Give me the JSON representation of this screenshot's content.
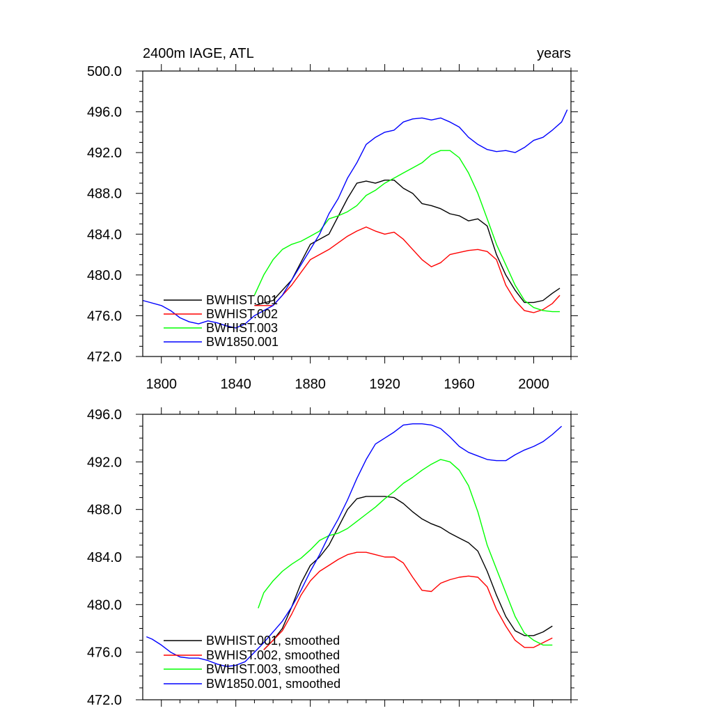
{
  "chart_data": [
    {
      "type": "line",
      "title_left": "2400m IAGE, ATL",
      "title_right": "years",
      "xlim": [
        1790,
        2020
      ],
      "ylim": [
        472,
        500
      ],
      "x_ticks": [
        "1800",
        "1840",
        "1880",
        "1920",
        "1960",
        "2000"
      ],
      "y_ticks": [
        "472.0",
        "476.0",
        "480.0",
        "484.0",
        "488.0",
        "492.0",
        "496.0",
        "500.0"
      ],
      "series": [
        {
          "name": "BWHIST.001",
          "color": "#000000",
          "x": [
            1850,
            1860,
            1870,
            1880,
            1890,
            1900,
            1905,
            1910,
            1915,
            1920,
            1925,
            1930,
            1935,
            1940,
            1945,
            1950,
            1955,
            1960,
            1965,
            1970,
            1975,
            1980,
            1985,
            1990,
            1995,
            2000,
            2005,
            2010,
            2014
          ],
          "y": [
            477.0,
            477.5,
            479.5,
            483.0,
            484.0,
            487.5,
            489.0,
            489.2,
            489.0,
            489.3,
            489.3,
            488.5,
            488.0,
            487.0,
            486.8,
            486.5,
            486.0,
            485.8,
            485.3,
            485.5,
            484.8,
            482.0,
            480.0,
            478.5,
            477.3,
            477.3,
            477.5,
            478.2,
            478.7
          ]
        },
        {
          "name": "BWHIST.002",
          "color": "#ff0000",
          "x": [
            1850,
            1860,
            1870,
            1880,
            1890,
            1900,
            1905,
            1910,
            1915,
            1920,
            1925,
            1930,
            1935,
            1940,
            1945,
            1950,
            1955,
            1960,
            1965,
            1970,
            1975,
            1980,
            1985,
            1990,
            1995,
            2000,
            2005,
            2010,
            2014
          ],
          "y": [
            477.0,
            477.0,
            479.0,
            481.5,
            482.5,
            483.8,
            484.3,
            484.7,
            484.3,
            484.0,
            484.2,
            483.5,
            482.5,
            481.5,
            480.8,
            481.2,
            482.0,
            482.2,
            482.4,
            482.5,
            482.3,
            481.5,
            479.0,
            477.5,
            476.5,
            476.3,
            476.6,
            477.2,
            478.0
          ]
        },
        {
          "name": "BWHIST.003",
          "color": "#00ff00",
          "x": [
            1850,
            1855,
            1860,
            1865,
            1870,
            1875,
            1880,
            1885,
            1890,
            1895,
            1900,
            1905,
            1910,
            1915,
            1920,
            1925,
            1930,
            1935,
            1940,
            1945,
            1950,
            1955,
            1960,
            1965,
            1970,
            1975,
            1980,
            1985,
            1990,
            1995,
            2000,
            2005,
            2010,
            2014
          ],
          "y": [
            478.0,
            480.0,
            481.5,
            482.5,
            483.0,
            483.3,
            483.8,
            484.3,
            485.5,
            485.8,
            486.2,
            486.8,
            487.8,
            488.3,
            489.0,
            489.5,
            490.0,
            490.5,
            491.0,
            491.8,
            492.2,
            492.2,
            491.5,
            490.0,
            488.0,
            485.5,
            483.0,
            481.0,
            479.0,
            477.5,
            476.8,
            476.5,
            476.4,
            476.4
          ]
        },
        {
          "name": "BW1850.001",
          "color": "#0000ff",
          "x": [
            1790,
            1800,
            1805,
            1810,
            1815,
            1820,
            1825,
            1830,
            1835,
            1840,
            1845,
            1850,
            1855,
            1860,
            1865,
            1870,
            1875,
            1880,
            1885,
            1890,
            1895,
            1900,
            1905,
            1910,
            1915,
            1920,
            1925,
            1930,
            1935,
            1940,
            1945,
            1950,
            1955,
            1960,
            1965,
            1970,
            1975,
            1980,
            1985,
            1990,
            1995,
            2000,
            2005,
            2010,
            2015,
            2018
          ],
          "y": [
            477.5,
            477.0,
            476.5,
            475.8,
            475.4,
            475.2,
            475.5,
            475.3,
            475.0,
            474.8,
            475.2,
            476.0,
            476.5,
            477.0,
            478.0,
            479.5,
            481.0,
            482.5,
            484.0,
            486.0,
            487.5,
            489.5,
            491.0,
            492.8,
            493.5,
            494.0,
            494.2,
            495.0,
            495.3,
            495.4,
            495.2,
            495.4,
            495.0,
            494.5,
            493.5,
            492.8,
            492.3,
            492.1,
            492.2,
            492.0,
            492.5,
            493.2,
            493.5,
            494.2,
            495.0,
            496.2
          ]
        }
      ]
    },
    {
      "type": "line",
      "xlim": [
        1790,
        2020
      ],
      "ylim": [
        472,
        496
      ],
      "y_ticks": [
        "472.0",
        "476.0",
        "480.0",
        "484.0",
        "488.0",
        "492.0",
        "496.0"
      ],
      "series": [
        {
          "name": "BWHIST.001, smoothed",
          "color": "#000000",
          "x": [
            1855,
            1860,
            1865,
            1870,
            1875,
            1880,
            1885,
            1890,
            1895,
            1900,
            1905,
            1910,
            1915,
            1920,
            1925,
            1930,
            1935,
            1940,
            1945,
            1950,
            1955,
            1960,
            1965,
            1970,
            1975,
            1980,
            1985,
            1990,
            1995,
            2000,
            2005,
            2010
          ],
          "y": [
            476.2,
            477.0,
            478.0,
            479.8,
            481.8,
            483.3,
            484.0,
            485.0,
            486.5,
            488.0,
            488.9,
            489.1,
            489.1,
            489.1,
            489.0,
            488.5,
            487.8,
            487.2,
            486.8,
            486.5,
            486.0,
            485.6,
            485.2,
            484.5,
            482.8,
            480.8,
            479.0,
            477.8,
            477.4,
            477.4,
            477.7,
            478.2
          ]
        },
        {
          "name": "BWHIST.002, smoothed",
          "color": "#ff0000",
          "x": [
            1855,
            1860,
            1865,
            1870,
            1875,
            1880,
            1885,
            1890,
            1895,
            1900,
            1905,
            1910,
            1915,
            1920,
            1925,
            1930,
            1935,
            1940,
            1945,
            1950,
            1955,
            1960,
            1965,
            1970,
            1975,
            1980,
            1985,
            1990,
            1995,
            2000,
            2005,
            2010
          ],
          "y": [
            476.2,
            477.0,
            477.8,
            479.2,
            480.8,
            482.0,
            482.8,
            483.3,
            483.8,
            484.2,
            484.4,
            484.4,
            484.2,
            484.0,
            484.0,
            483.5,
            482.3,
            481.2,
            481.1,
            481.8,
            482.1,
            482.3,
            482.4,
            482.3,
            481.5,
            479.6,
            478.2,
            477.0,
            476.4,
            476.4,
            476.8,
            477.2
          ]
        },
        {
          "name": "BWHIST.003, smoothed",
          "color": "#00ff00",
          "x": [
            1852,
            1855,
            1860,
            1865,
            1870,
            1875,
            1880,
            1885,
            1890,
            1895,
            1900,
            1905,
            1910,
            1915,
            1920,
            1925,
            1930,
            1935,
            1940,
            1945,
            1950,
            1955,
            1960,
            1965,
            1970,
            1975,
            1980,
            1985,
            1990,
            1995,
            2000,
            2005,
            2010
          ],
          "y": [
            479.7,
            481.0,
            482.0,
            482.8,
            483.4,
            483.9,
            484.6,
            485.4,
            485.8,
            486.0,
            486.4,
            487.0,
            487.6,
            488.2,
            488.9,
            489.5,
            490.2,
            490.7,
            491.3,
            491.8,
            492.2,
            492.0,
            491.3,
            490.0,
            487.8,
            485.0,
            483.0,
            481.0,
            479.0,
            477.6,
            477.0,
            476.6,
            476.6
          ]
        },
        {
          "name": "BW1850.001, smoothed",
          "color": "#0000ff",
          "x": [
            1792,
            1795,
            1800,
            1805,
            1810,
            1815,
            1820,
            1825,
            1830,
            1835,
            1840,
            1845,
            1850,
            1855,
            1860,
            1865,
            1870,
            1875,
            1880,
            1885,
            1890,
            1895,
            1900,
            1905,
            1910,
            1915,
            1920,
            1925,
            1930,
            1935,
            1940,
            1945,
            1950,
            1955,
            1960,
            1965,
            1970,
            1975,
            1980,
            1985,
            1990,
            1995,
            2000,
            2005,
            2010,
            2015
          ],
          "y": [
            477.3,
            477.1,
            476.6,
            476.0,
            475.6,
            475.5,
            475.5,
            475.3,
            475.0,
            474.8,
            474.9,
            475.2,
            476.0,
            476.8,
            477.7,
            478.6,
            479.8,
            481.2,
            482.8,
            484.2,
            485.8,
            487.2,
            488.8,
            490.6,
            492.2,
            493.5,
            494.0,
            494.5,
            495.1,
            495.2,
            495.2,
            495.1,
            494.8,
            494.1,
            493.3,
            492.8,
            492.5,
            492.2,
            492.1,
            492.1,
            492.6,
            493.0,
            493.3,
            493.7,
            494.3,
            495.0
          ]
        }
      ]
    }
  ]
}
